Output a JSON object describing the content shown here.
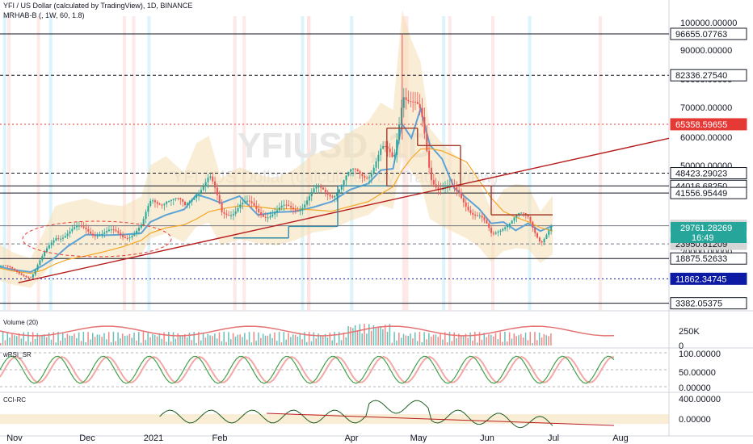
{
  "header": {
    "symbol_line": "YFI / US Dollar (calculated by TradingView), 1D, BINANCE",
    "indicator_line": "MRHAB-B (, 1W, 60, 1.8)"
  },
  "watermark": {
    "symbol": "YFIUSD, 1D",
    "description": "YFI / US Dollar (calculated by TradingView)"
  },
  "panes": {
    "volume_label": "Volume (20)",
    "wrsi_label": "wRSI_SR",
    "cci_label": "CCI-RC"
  },
  "colors": {
    "up": "#26a69a",
    "down": "#ef5350",
    "trendline": "#b71c1c",
    "band": "#f5deb3",
    "red_level": "#e53935",
    "blue_level": "#0d1aa3",
    "dark_level": "#131722"
  },
  "chart_data": {
    "type": "candlestick",
    "x_ticks": [
      "Nov",
      "Dec",
      "2021",
      "Feb",
      "Apr",
      "May",
      "Jun",
      "Jul",
      "Aug"
    ],
    "y_ticks": [
      "100000.00000",
      "90000.00000",
      "80000.00000",
      "70000.00000",
      "60000.00000",
      "50000.00000",
      "40000.00000",
      "20000.00000",
      "10000.00000"
    ],
    "ylim": [
      0,
      102000
    ],
    "price_series": [
      {
        "t": 0,
        "p": 16500
      },
      {
        "t": 0.02,
        "p": 14500
      },
      {
        "t": 0.05,
        "p": 12800
      },
      {
        "t": 0.07,
        "p": 19500
      },
      {
        "t": 0.09,
        "p": 27000
      },
      {
        "t": 0.11,
        "p": 28000
      },
      {
        "t": 0.14,
        "p": 29000
      },
      {
        "t": 0.17,
        "p": 27500
      },
      {
        "t": 0.2,
        "p": 27000
      },
      {
        "t": 0.23,
        "p": 29500
      },
      {
        "t": 0.245,
        "p": 38000
      },
      {
        "t": 0.27,
        "p": 40500
      },
      {
        "t": 0.3,
        "p": 36000
      },
      {
        "t": 0.32,
        "p": 44000
      },
      {
        "t": 0.34,
        "p": 46000
      },
      {
        "t": 0.36,
        "p": 34500
      },
      {
        "t": 0.39,
        "p": 37500
      },
      {
        "t": 0.42,
        "p": 35500
      },
      {
        "t": 0.45,
        "p": 34500
      },
      {
        "t": 0.48,
        "p": 37000
      },
      {
        "t": 0.51,
        "p": 41000
      },
      {
        "t": 0.54,
        "p": 42500
      },
      {
        "t": 0.57,
        "p": 47000
      },
      {
        "t": 0.6,
        "p": 50000
      },
      {
        "t": 0.62,
        "p": 55000
      },
      {
        "t": 0.64,
        "p": 53000
      },
      {
        "t": 0.655,
        "p": 80000
      },
      {
        "t": 0.67,
        "p": 72000
      },
      {
        "t": 0.685,
        "p": 66000
      },
      {
        "t": 0.7,
        "p": 48000
      },
      {
        "t": 0.72,
        "p": 44000
      },
      {
        "t": 0.74,
        "p": 41000
      },
      {
        "t": 0.76,
        "p": 38000
      },
      {
        "t": 0.78,
        "p": 33500
      },
      {
        "t": 0.8,
        "p": 26000
      },
      {
        "t": 0.82,
        "p": 31500
      },
      {
        "t": 0.84,
        "p": 33000
      },
      {
        "t": 0.86,
        "p": 32500
      },
      {
        "t": 0.88,
        "p": 25500
      },
      {
        "t": 0.9,
        "p": 29800
      }
    ],
    "horizontal_levels": [
      {
        "price": 96655.07763,
        "label": "96655.07763",
        "style": "solid",
        "color": "#131722"
      },
      {
        "price": 82336.2754,
        "label": "82336.27540",
        "style": "dashed",
        "color": "#131722"
      },
      {
        "price": 65358.59655,
        "label": "65358.59655",
        "style": "dotted",
        "color": "#e53935"
      },
      {
        "price": 48423.29023,
        "label": "48423.29023",
        "style": "dashed",
        "color": "#131722"
      },
      {
        "price": 44016.6825,
        "label": "44016.68250",
        "style": "solid",
        "color": "#131722"
      },
      {
        "price": 41556.95449,
        "label": "41556.95449",
        "style": "solid",
        "color": "#131722"
      },
      {
        "price": 30217.97887,
        "label": "30217.97887",
        "style": "solid",
        "color": "#787b86"
      },
      {
        "price": 23950.81209,
        "label": "23950.81209",
        "style": "dashed",
        "color": "#787b86"
      },
      {
        "price": 18875.52633,
        "label": "18875.52633",
        "style": "solid",
        "color": "#131722"
      },
      {
        "price": 11862.34745,
        "label": "11862.34745",
        "style": "dotted",
        "color": "#0d1aa3"
      },
      {
        "price": 3382.05375,
        "label": "3382.05375",
        "style": "solid",
        "color": "#131722"
      }
    ],
    "last_price": {
      "value": "29761.28269",
      "countdown": "16:49"
    },
    "trendline": {
      "from": {
        "t": 0.03,
        "p": 10500
      },
      "to": {
        "t": 1.0,
        "p": 60500
      }
    },
    "volume_ticks": [
      "250K",
      "0"
    ],
    "wrsi_ticks": [
      "100.00000",
      "50.00000",
      "0.00000"
    ],
    "cci_ticks": [
      "400.00000",
      "0.00000"
    ]
  }
}
